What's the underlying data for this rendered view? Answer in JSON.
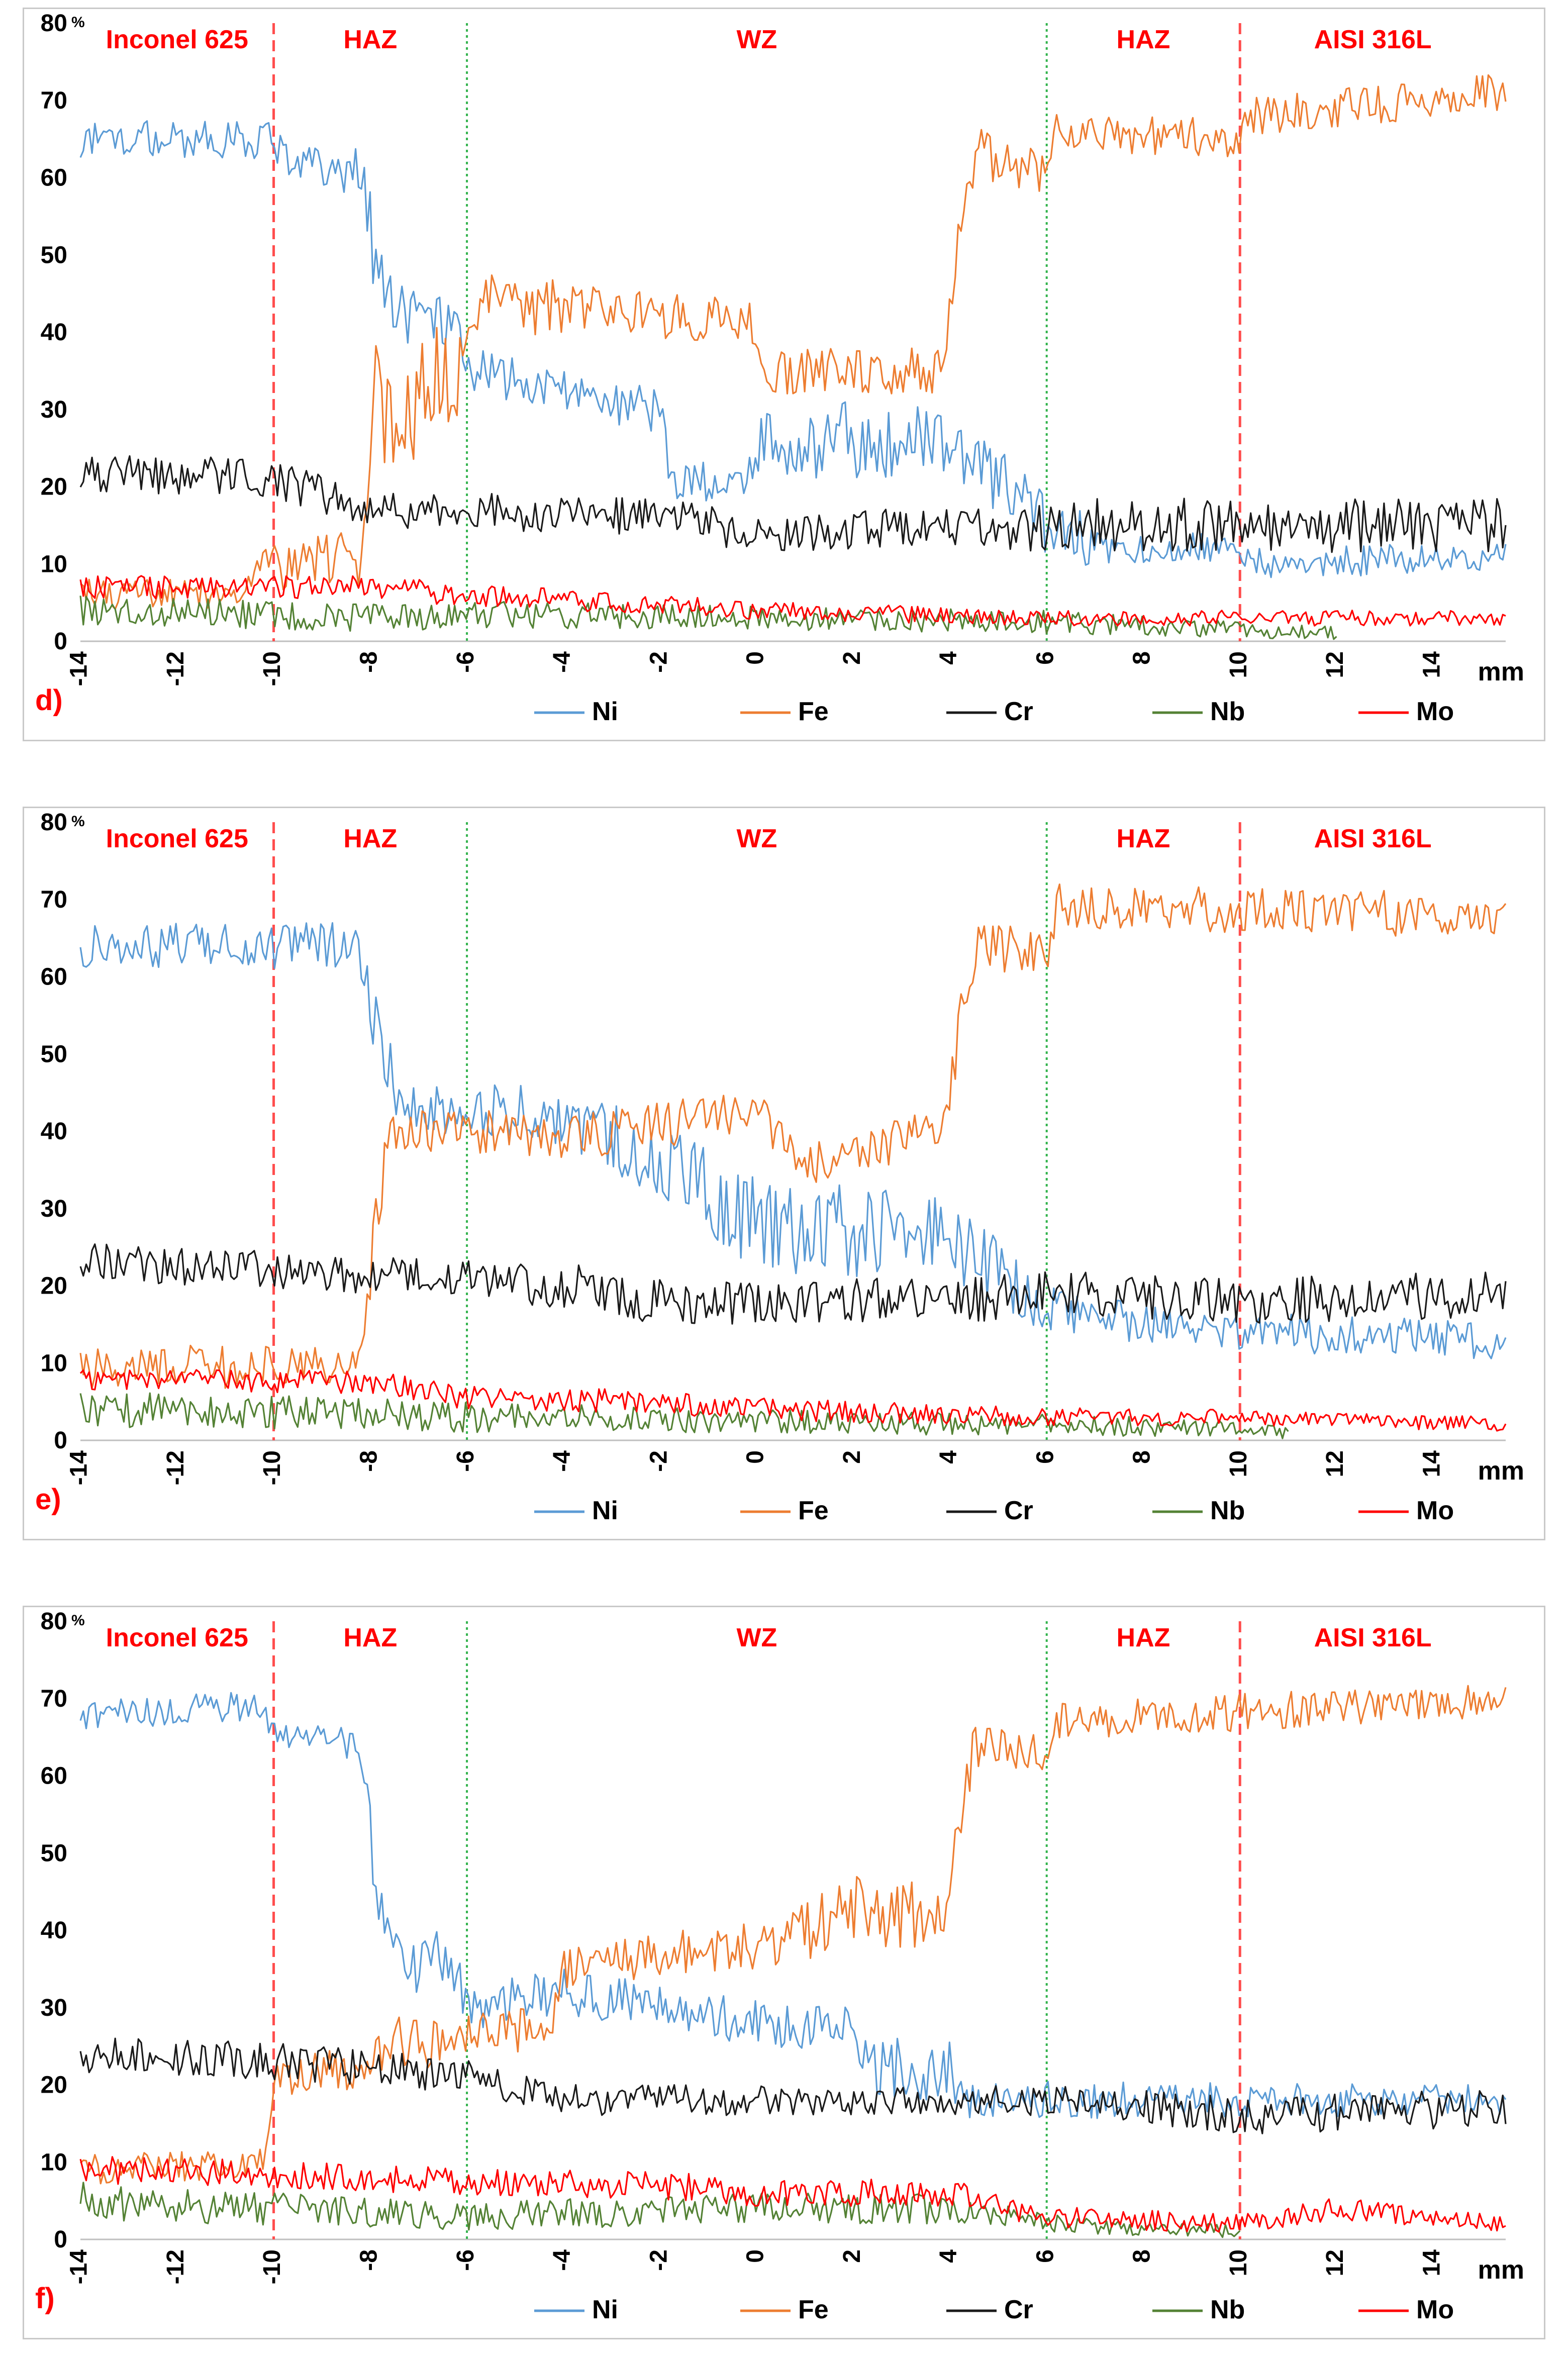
{
  "chart_data": [
    {
      "type": "line",
      "panel_label": "d)",
      "xlabel": "mm",
      "ylabel_unit": "%",
      "xlim": [
        -14,
        15.5
      ],
      "ylim": [
        0,
        80
      ],
      "x_ticks": [
        "-14",
        "-12",
        "-10",
        "-8",
        "-6",
        "-4",
        "-2",
        "0",
        "2",
        "4",
        "6",
        "8",
        "10",
        "12",
        "14"
      ],
      "y_ticks": [
        "80",
        "70",
        "60",
        "50",
        "40",
        "30",
        "20",
        "10",
        "0"
      ],
      "zones": [
        {
          "label": "Inconel 625",
          "x_from": -14,
          "x_to": -10
        },
        {
          "label": "HAZ",
          "x_from": -10,
          "x_to": -6
        },
        {
          "label": "WZ",
          "x_from": -6,
          "x_to": 6
        },
        {
          "label": "HAZ",
          "x_from": 6,
          "x_to": 10
        },
        {
          "label": "AISI 316L",
          "x_from": 10,
          "x_to": 15.5
        }
      ],
      "boundaries": [
        {
          "x": -10,
          "style": "dashed",
          "color": "#ff4d4d"
        },
        {
          "x": -6,
          "style": "dotted",
          "color": "#33b34d"
        },
        {
          "x": 6,
          "style": "dotted",
          "color": "#33b34d"
        },
        {
          "x": 10,
          "style": "dashed",
          "color": "#ff4d4d"
        }
      ],
      "series": [
        {
          "name": "Ni",
          "color": "#5b9bd5",
          "x": [
            -14,
            -10,
            -9.6,
            -8.2,
            -7.9,
            -7.4,
            -6.2,
            -5.9,
            -4.6,
            -2,
            -1.8,
            0,
            0.1,
            4,
            6,
            7,
            7.2,
            10,
            10.2,
            15.5
          ],
          "y": [
            65,
            65,
            61,
            61,
            50,
            42,
            42,
            35,
            33,
            30,
            21,
            21,
            26,
            26,
            15,
            13,
            12,
            12,
            10,
            11
          ],
          "noise": [
            2.5,
            2.5,
            3,
            3,
            6,
            4,
            4,
            3,
            3,
            3,
            3,
            3,
            5,
            5,
            4,
            4,
            2,
            2,
            2,
            2
          ]
        },
        {
          "name": "Fe",
          "color": "#ed7d31",
          "x": [
            -14,
            -11,
            -10.3,
            -8.2,
            -7.9,
            -6.2,
            -6,
            0,
            0.1,
            3.9,
            4.2,
            4.6,
            6,
            6.2,
            10,
            10.2,
            15.5
          ],
          "y": [
            6,
            6,
            9,
            11,
            32,
            32,
            44,
            41,
            35,
            35,
            55,
            63,
            61,
            66,
            65,
            68,
            71
          ],
          "noise": [
            2,
            2,
            3,
            4,
            9,
            9,
            4,
            3,
            3,
            3,
            5,
            4,
            3,
            2.5,
            2.5,
            2.5,
            2.5
          ]
        },
        {
          "name": "Cr",
          "color": "#1a1a1a",
          "x": [
            -14,
            -10,
            -8,
            -6,
            -2,
            0,
            4,
            6,
            15.5
          ],
          "y": [
            22,
            21,
            17,
            17,
            16,
            14,
            15,
            15,
            15
          ],
          "noise": [
            2.5,
            2.5,
            2.5,
            2.5,
            2.5,
            2.5,
            2.5,
            3.5,
            3.5
          ]
        },
        {
          "name": "Nb",
          "color": "#548235",
          "x": [
            -14,
            -8,
            -6,
            0,
            6,
            10,
            12
          ],
          "y": [
            4,
            3,
            3.5,
            3,
            2.5,
            1.5,
            1
          ],
          "noise": [
            2,
            1.8,
            1.8,
            1.5,
            1.5,
            1,
            1
          ]
        },
        {
          "name": "Mo",
          "color": "#ff0000",
          "x": [
            -14,
            -8,
            -6,
            0,
            6,
            10,
            15.5
          ],
          "y": [
            7,
            7,
            6,
            4,
            3,
            3,
            3
          ],
          "noise": [
            1.5,
            1.5,
            1.5,
            1.2,
            1,
            1,
            1
          ]
        }
      ]
    },
    {
      "type": "line",
      "panel_label": "e)",
      "xlabel": "mm",
      "ylabel_unit": "%",
      "xlim": [
        -14,
        15.5
      ],
      "ylim": [
        0,
        80
      ],
      "x_ticks": [
        "-14",
        "-12",
        "-10",
        "-8",
        "-6",
        "-4",
        "-2",
        "0",
        "2",
        "4",
        "6",
        "8",
        "10",
        "12",
        "14"
      ],
      "y_ticks": [
        "80",
        "70",
        "60",
        "50",
        "40",
        "30",
        "20",
        "10",
        "0"
      ],
      "zones": [
        {
          "label": "Inconel 625",
          "x_from": -14,
          "x_to": -10
        },
        {
          "label": "HAZ",
          "x_from": -10,
          "x_to": -6
        },
        {
          "label": "WZ",
          "x_from": -6,
          "x_to": 6
        },
        {
          "label": "HAZ",
          "x_from": 6,
          "x_to": 10
        },
        {
          "label": "AISI 316L",
          "x_from": 10,
          "x_to": 15.5
        }
      ],
      "boundaries": [
        {
          "x": -10,
          "style": "dashed",
          "color": "#ff4d4d"
        },
        {
          "x": -6,
          "style": "dotted",
          "color": "#33b34d"
        },
        {
          "x": 6,
          "style": "dotted",
          "color": "#33b34d"
        },
        {
          "x": 10,
          "style": "dashed",
          "color": "#ff4d4d"
        }
      ],
      "series": [
        {
          "name": "Ni",
          "color": "#5b9bd5",
          "x": [
            -14,
            -8.3,
            -8,
            -7.6,
            -7.4,
            -4,
            -2,
            0,
            4,
            6,
            8,
            10,
            15.5
          ],
          "y": [
            64,
            64,
            56,
            48,
            43,
            42,
            36,
            28,
            26,
            17,
            15,
            14,
            13
          ],
          "noise": [
            3,
            3,
            4,
            4,
            3,
            4,
            5,
            6,
            6,
            3,
            2.5,
            2.5,
            2.5
          ]
        },
        {
          "name": "Fe",
          "color": "#ed7d31",
          "x": [
            -14,
            -8.2,
            -7.9,
            -7.6,
            -6,
            -4,
            -2,
            0,
            1,
            3.9,
            4.2,
            4.6,
            6,
            6.2,
            15.5
          ],
          "y": [
            9,
            10,
            28,
            40,
            40,
            39,
            41,
            42,
            36,
            40,
            55,
            64,
            63,
            69,
            68
          ],
          "noise": [
            3,
            3,
            5,
            3,
            3,
            3,
            3,
            3,
            3,
            3,
            4,
            3,
            3,
            3,
            3
          ]
        },
        {
          "name": "Cr",
          "color": "#1a1a1a",
          "x": [
            -14,
            -10,
            -6,
            -4,
            -2,
            0,
            4,
            6,
            10,
            15.5
          ],
          "y": [
            23,
            22,
            21,
            20,
            18,
            18,
            18,
            19,
            18,
            19
          ],
          "noise": [
            2.5,
            2.5,
            2.5,
            3,
            3,
            3,
            3,
            3,
            3,
            3
          ]
        },
        {
          "name": "Nb",
          "color": "#548235",
          "x": [
            -14,
            -8,
            -6,
            0,
            6,
            10,
            11
          ],
          "y": [
            4,
            3.5,
            3,
            2.5,
            2,
            1.5,
            1
          ],
          "noise": [
            2.5,
            2,
            2,
            1.5,
            1.5,
            1,
            0.8
          ]
        },
        {
          "name": "Mo",
          "color": "#ff0000",
          "x": [
            -14,
            -8,
            -6,
            -2,
            0,
            6,
            10,
            15.5
          ],
          "y": [
            8,
            7.5,
            5.5,
            5,
            4,
            3,
            3,
            2
          ],
          "noise": [
            1.5,
            1.5,
            1.5,
            1.5,
            1.5,
            1.2,
            1,
            1
          ]
        }
      ]
    },
    {
      "type": "line",
      "panel_label": "f)",
      "xlabel": "mm",
      "ylabel_unit": "%",
      "xlim": [
        -14,
        15.5
      ],
      "ylim": [
        0,
        80
      ],
      "x_ticks": [
        "-14",
        "-12",
        "-10",
        "-8",
        "-6",
        "-4",
        "-2",
        "0",
        "2",
        "4",
        "6",
        "8",
        "10",
        "12",
        "14"
      ],
      "y_ticks": [
        "80",
        "70",
        "60",
        "50",
        "40",
        "30",
        "20",
        "10",
        "0"
      ],
      "zones": [
        {
          "label": "Inconel 625",
          "x_from": -14,
          "x_to": -10
        },
        {
          "label": "HAZ",
          "x_from": -10,
          "x_to": -6
        },
        {
          "label": "WZ",
          "x_from": -6,
          "x_to": 6
        },
        {
          "label": "HAZ",
          "x_from": 6,
          "x_to": 10
        },
        {
          "label": "AISI 316L",
          "x_from": 10,
          "x_to": 15.5
        }
      ],
      "boundaries": [
        {
          "x": -10,
          "style": "dashed",
          "color": "#ff4d4d"
        },
        {
          "x": -6,
          "style": "dotted",
          "color": "#33b34d"
        },
        {
          "x": 6,
          "style": "dotted",
          "color": "#33b34d"
        },
        {
          "x": 10,
          "style": "dashed",
          "color": "#ff4d4d"
        }
      ],
      "series": [
        {
          "name": "Ni",
          "color": "#5b9bd5",
          "x": [
            -14,
            -10.2,
            -10,
            -8.2,
            -7.9,
            -7.6,
            -6.2,
            -6,
            -4,
            -2,
            0,
            2,
            2.2,
            4,
            4.2,
            6,
            15.5
          ],
          "y": [
            68,
            69,
            65,
            64,
            48,
            36,
            36,
            30,
            32,
            30,
            28,
            27,
            22,
            22,
            18,
            18,
            18
          ],
          "noise": [
            2,
            2,
            2,
            2,
            5,
            4,
            4,
            3,
            3,
            3,
            3,
            3,
            4,
            4,
            2.5,
            2.5,
            2
          ]
        },
        {
          "name": "Fe",
          "color": "#ed7d31",
          "x": [
            -14,
            -10.2,
            -10,
            -8.2,
            -8,
            -6,
            -4.2,
            -4,
            -2,
            0,
            2,
            3.9,
            4.2,
            4.5,
            6,
            6.2,
            15.5
          ],
          "y": [
            9,
            10,
            21,
            22,
            25,
            26,
            28,
            35,
            37,
            38,
            42,
            42,
            55,
            64,
            63,
            67,
            70
          ],
          "noise": [
            2,
            2,
            3,
            3,
            4,
            3,
            3,
            3,
            3,
            3,
            5,
            4,
            4,
            3,
            3,
            2.5,
            2.5
          ]
        },
        {
          "name": "Cr",
          "color": "#1a1a1a",
          "x": [
            -14,
            -10,
            -6,
            -4,
            0,
            6,
            10,
            15.5
          ],
          "y": [
            24,
            23,
            21,
            18,
            18,
            18,
            16,
            17
          ],
          "noise": [
            2.5,
            2.5,
            2.5,
            2,
            2,
            2,
            2.5,
            2.5
          ]
        },
        {
          "name": "Nb",
          "color": "#548235",
          "x": [
            -14,
            -8,
            -6,
            0,
            4,
            6,
            10
          ],
          "y": [
            5,
            3.5,
            3,
            4,
            4,
            2,
            1
          ],
          "noise": [
            2.5,
            2,
            1.8,
            2,
            2,
            1.2,
            0.8
          ]
        },
        {
          "name": "Mo",
          "color": "#ff0000",
          "x": [
            -14,
            -10,
            -6,
            -2,
            0,
            4,
            6,
            10,
            12,
            15.5
          ],
          "y": [
            9,
            8.5,
            7.5,
            7,
            6,
            6,
            3,
            2,
            4,
            2
          ],
          "noise": [
            1.8,
            1.8,
            1.8,
            1.8,
            1.8,
            1.8,
            1.5,
            1.2,
            1.5,
            1
          ]
        }
      ]
    }
  ]
}
